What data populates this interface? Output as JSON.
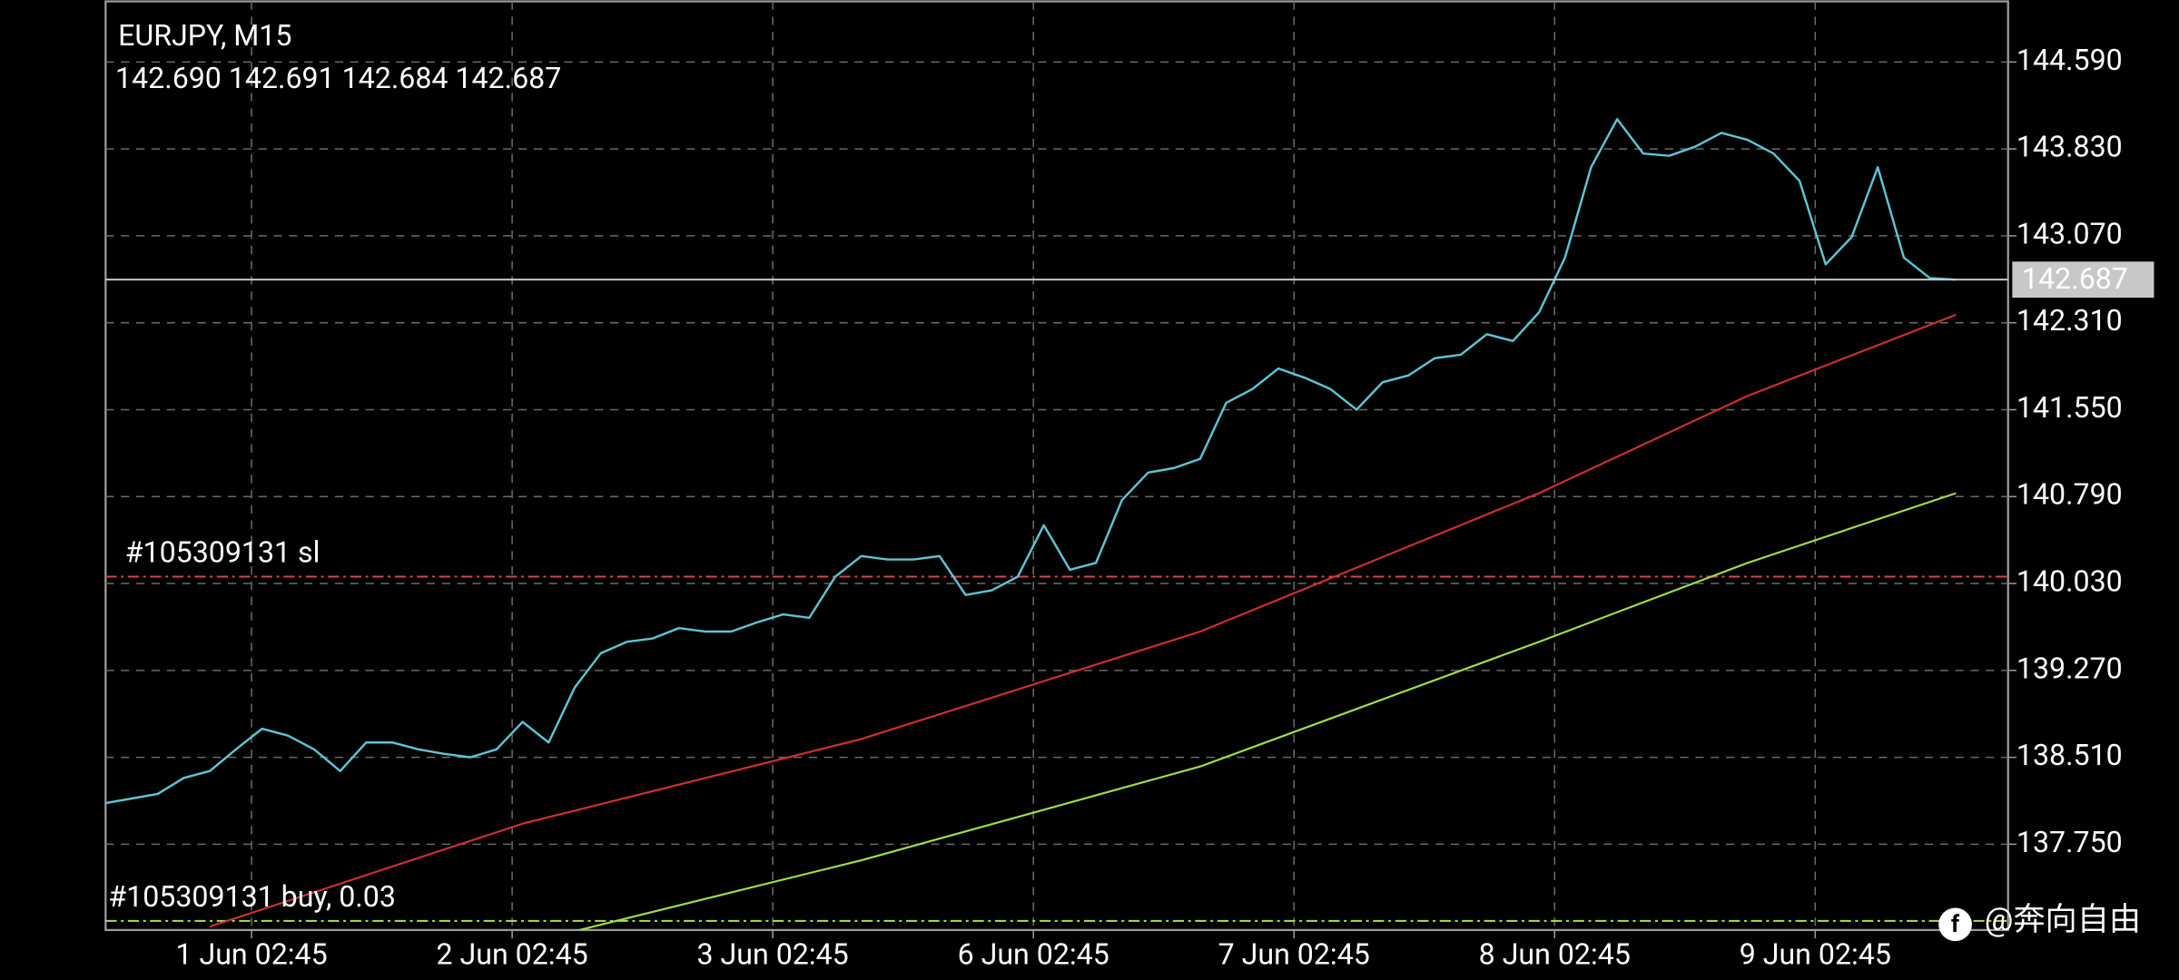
{
  "chart_data": {
    "type": "line",
    "title": "EURJPY, M15",
    "subtitle": "142.690 142.691 142.684 142.687",
    "xlim": [
      0,
      73
    ],
    "ylim": [
      137.0,
      145.12
    ],
    "grid": true,
    "xticks": [
      {
        "value": 5.6,
        "label": "1 Jun 02:45"
      },
      {
        "value": 15.6,
        "label": "2 Jun 02:45"
      },
      {
        "value": 25.6,
        "label": "3 Jun 02:45"
      },
      {
        "value": 35.6,
        "label": "6 Jun 02:45"
      },
      {
        "value": 45.6,
        "label": "7 Jun 02:45"
      },
      {
        "value": 55.6,
        "label": "8 Jun 02:45"
      },
      {
        "value": 65.6,
        "label": "9 Jun 02:45"
      }
    ],
    "yticks": [
      {
        "value": 137.75,
        "label": "137.750"
      },
      {
        "value": 138.51,
        "label": "138.510"
      },
      {
        "value": 139.27,
        "label": "139.270"
      },
      {
        "value": 140.03,
        "label": "140.030"
      },
      {
        "value": 140.79,
        "label": "140.790"
      },
      {
        "value": 141.55,
        "label": "141.550"
      },
      {
        "value": 142.31,
        "label": "142.310"
      },
      {
        "value": 143.07,
        "label": "143.070"
      },
      {
        "value": 143.83,
        "label": "143.830"
      },
      {
        "value": 144.59,
        "label": "144.590"
      }
    ],
    "series": [
      {
        "color": "#5ec4d4",
        "x": [
          0,
          1,
          2,
          3,
          4,
          5,
          6,
          7,
          8,
          9,
          10,
          11,
          12,
          13,
          14,
          15,
          16,
          17,
          18,
          19,
          20,
          21,
          22,
          23,
          24,
          25,
          26,
          27,
          28,
          29,
          30,
          31,
          32,
          33,
          34,
          35,
          36,
          37,
          38,
          39,
          40,
          41,
          42,
          43,
          44,
          45,
          46,
          47,
          48,
          49,
          50,
          51,
          52,
          53,
          54,
          55,
          56,
          57,
          58,
          59,
          60,
          61,
          62,
          63,
          64,
          65,
          66,
          67,
          68,
          69,
          70,
          71
        ],
        "values": [
          138.11,
          138.15,
          138.19,
          138.33,
          138.39,
          138.58,
          138.76,
          138.7,
          138.58,
          138.39,
          138.64,
          138.64,
          138.58,
          138.54,
          138.51,
          138.58,
          138.82,
          138.64,
          139.12,
          139.42,
          139.52,
          139.55,
          139.64,
          139.61,
          139.61,
          139.69,
          139.76,
          139.73,
          140.09,
          140.27,
          140.24,
          140.24,
          140.27,
          139.93,
          139.97,
          140.09,
          140.54,
          140.15,
          140.21,
          140.76,
          141.0,
          141.04,
          141.12,
          141.61,
          141.73,
          141.91,
          141.83,
          141.73,
          141.55,
          141.79,
          141.85,
          142.0,
          142.03,
          142.21,
          142.15,
          142.4,
          142.88,
          143.67,
          144.09,
          143.79,
          143.77,
          143.85,
          143.97,
          143.91,
          143.79,
          143.55,
          142.82,
          143.06,
          143.67,
          142.88,
          142.7,
          142.687
        ]
      },
      {
        "color": "#d03030",
        "x": [
          4,
          16,
          29,
          42,
          55,
          63,
          71
        ],
        "values": [
          137.03,
          137.93,
          138.67,
          139.61,
          140.82,
          141.67,
          142.38
        ]
      },
      {
        "color": "#9ee04a",
        "x": [
          18,
          29,
          42,
          55,
          63,
          71
        ],
        "values": [
          136.99,
          137.61,
          138.43,
          139.52,
          140.21,
          140.82
        ]
      }
    ],
    "levels": [
      {
        "label": "#105309131 sl",
        "value": 140.09,
        "color": "#d04848"
      },
      {
        "label": "#105309131 buy, 0.03",
        "value": 137.08,
        "color": "#a8e050"
      }
    ],
    "current_price": 142.687,
    "watermark": "@奔向自由"
  }
}
